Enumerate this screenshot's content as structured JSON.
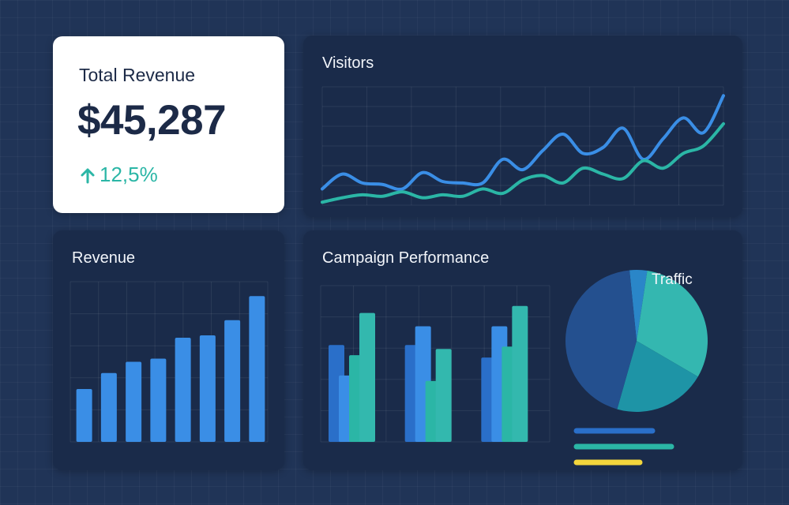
{
  "kpi": {
    "title": "Total Revenue",
    "value": "$45,287",
    "change": "12,5%",
    "change_icon": "arrow-up-icon",
    "change_color": "#2bb6a6"
  },
  "visitors": {
    "title": "Visitors",
    "chart_data": {
      "type": "line",
      "x": [
        0,
        1,
        2,
        3,
        4,
        5,
        6,
        7,
        8,
        9,
        10,
        11,
        12,
        13,
        14,
        15,
        16,
        17,
        18,
        19,
        20
      ],
      "series": [
        {
          "color": "#3a8ee6",
          "values": [
            22,
            42,
            30,
            28,
            22,
            44,
            32,
            30,
            30,
            62,
            48,
            74,
            96,
            70,
            78,
            104,
            62,
            90,
            118,
            98,
            148
          ]
        },
        {
          "color": "#2bb6a6",
          "values": [
            4,
            10,
            14,
            12,
            18,
            10,
            14,
            12,
            22,
            16,
            34,
            40,
            30,
            50,
            42,
            36,
            60,
            50,
            70,
            80,
            110
          ]
        }
      ],
      "grid": true,
      "ylim": [
        0,
        160
      ]
    }
  },
  "revenue": {
    "title": "Revenue",
    "chart_data": {
      "type": "bar",
      "color": "#3a8ee6",
      "values": [
        66,
        86,
        100,
        104,
        130,
        133,
        152,
        182
      ],
      "ylim": [
        0,
        200
      ],
      "grid": true
    }
  },
  "campaign": {
    "title": "Campaign Performance",
    "pie_label": "Traffic",
    "chart_data": [
      {
        "type": "bar",
        "grouped": true,
        "series": [
          {
            "color": "#2a6fc9",
            "values": [
              124,
              124,
              108
            ]
          },
          {
            "color": "#3a8ee6",
            "values": [
              85,
              148,
              148
            ]
          },
          {
            "color": "#2bb6a6",
            "values": [
              111,
              78,
              122
            ]
          },
          {
            "color": "#33b8ae",
            "values": [
              165,
              119,
              174
            ]
          }
        ],
        "ylim": [
          0,
          200
        ]
      },
      {
        "type": "pie",
        "slices": [
          {
            "value": 4,
            "color": "#2a86c8"
          },
          {
            "value": 31,
            "color": "#34b7b0"
          },
          {
            "value": 21,
            "color": "#1e94a6"
          },
          {
            "value": 44,
            "color": "#24508f"
          }
        ]
      }
    ],
    "legend_lines": [
      {
        "color": "#2a6fc9",
        "length": 0.6
      },
      {
        "color": "#2bb6a6",
        "length": 0.75
      },
      {
        "color": "#f2d53c",
        "length": 0.5
      }
    ]
  }
}
